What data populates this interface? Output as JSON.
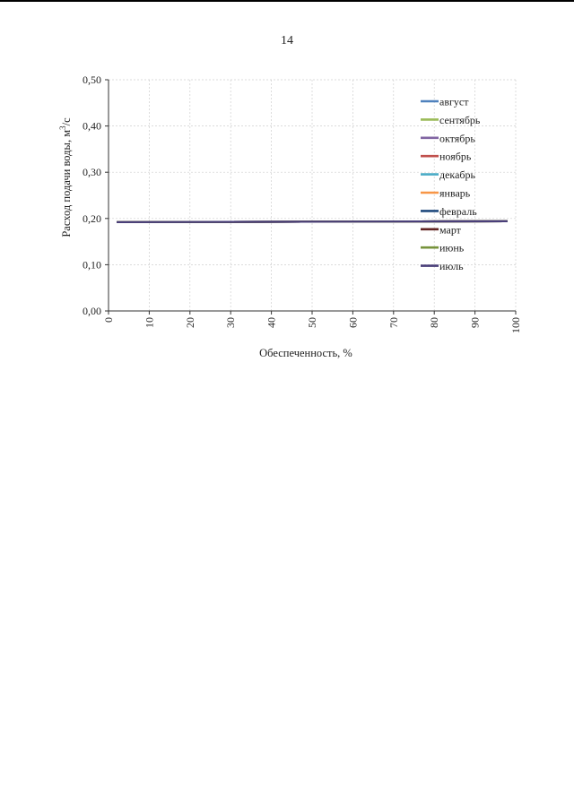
{
  "page": {
    "number": "14"
  },
  "chart_data": {
    "type": "line",
    "xlabel": "Обеспеченность, %",
    "ylabel": "Расход подачи воды, м³/с",
    "ylabel_main": "Расход подачи воды, м",
    "ylabel_sup": "3",
    "ylabel_tail": "/с",
    "xlim": [
      0,
      100
    ],
    "ylim": [
      0,
      0.5
    ],
    "x_ticks": [
      "0",
      "10",
      "20",
      "30",
      "40",
      "50",
      "60",
      "70",
      "80",
      "90",
      "100"
    ],
    "y_ticks": [
      "0,00",
      "0,10",
      "0,20",
      "0,30",
      "0,40",
      "0,50"
    ],
    "grid": true,
    "legend_position": "top-right",
    "series": [
      {
        "name": "август",
        "color": "#4f81bd",
        "x": [
          2,
          98
        ],
        "y": [
          0.192,
          0.194
        ]
      },
      {
        "name": "сентябрь",
        "color": "#9bbb59",
        "x": [
          2,
          98
        ],
        "y": [
          0.192,
          0.194
        ]
      },
      {
        "name": "октябрь",
        "color": "#8064a2",
        "x": [
          2,
          98
        ],
        "y": [
          0.192,
          0.194
        ]
      },
      {
        "name": "ноябрь",
        "color": "#c0504d",
        "x": [
          2,
          98
        ],
        "y": [
          0.192,
          0.194
        ]
      },
      {
        "name": "декабрь",
        "color": "#4bacc6",
        "x": [
          2,
          98
        ],
        "y": [
          0.192,
          0.194
        ]
      },
      {
        "name": "январь",
        "color": "#f79646",
        "x": [
          2,
          98
        ],
        "y": [
          0.192,
          0.194
        ]
      },
      {
        "name": "февраль",
        "color": "#1f497d",
        "x": [
          2,
          98
        ],
        "y": [
          0.192,
          0.194
        ]
      },
      {
        "name": "март",
        "color": "#632523",
        "x": [
          2,
          98
        ],
        "y": [
          0.192,
          0.194
        ]
      },
      {
        "name": "июнь",
        "color": "#77933c",
        "x": [
          2,
          98
        ],
        "y": [
          0.192,
          0.194
        ]
      },
      {
        "name": "июль",
        "color": "#4a3f7a",
        "x": [
          2,
          98
        ],
        "y": [
          0.192,
          0.194
        ]
      }
    ]
  }
}
